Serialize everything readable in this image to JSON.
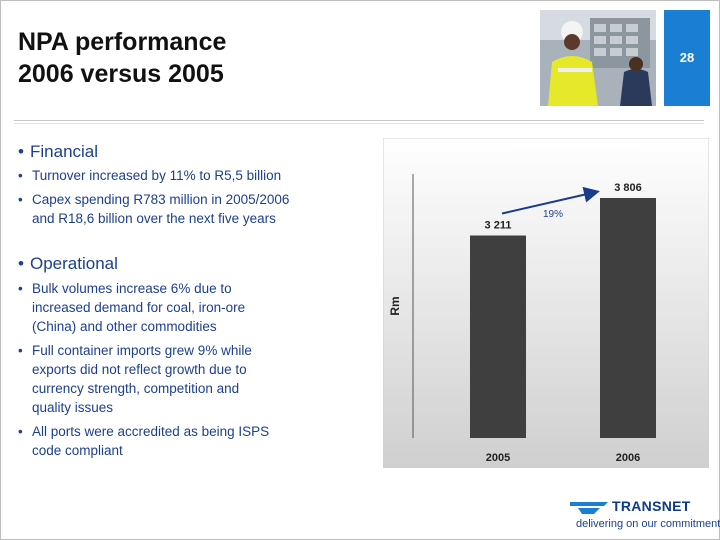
{
  "page": {
    "title_line1": "NPA performance",
    "title_line2": "2006 versus 2005",
    "page_number": "28"
  },
  "sections": {
    "financial": {
      "heading": "Financial",
      "bullets": [
        [
          "Turnover increased by 11% to R5,5 billion"
        ],
        [
          "Capex spending R783 million in 2005/2006",
          "and R18,6 billion over the next five years"
        ]
      ]
    },
    "operational": {
      "heading": "Operational",
      "bullets": [
        [
          "Bulk volumes increase 6% due to",
          "increased demand for coal, iron-ore",
          "(China) and other  commodities"
        ],
        [
          "Full container imports grew 9% while",
          "exports did not reflect growth due to",
          "currency strength, competition and",
          "quality issues"
        ],
        [
          "All ports were accredited as being ISPS",
          "code compliant"
        ]
      ]
    }
  },
  "chart_data": {
    "type": "bar",
    "categories": [
      "2005",
      "2006"
    ],
    "values": [
      3211,
      3806
    ],
    "value_labels": [
      "3 211",
      "3 806"
    ],
    "ylabel": "Rm",
    "growth_annotation": "19%",
    "bar_color": "#3f3f3f",
    "background_gradient": [
      "#ffffff",
      "#cfcfcf"
    ]
  },
  "logo": {
    "name": "TRANSNET",
    "tagline": "delivering on our commitments",
    "color": "#0c3a8e"
  }
}
